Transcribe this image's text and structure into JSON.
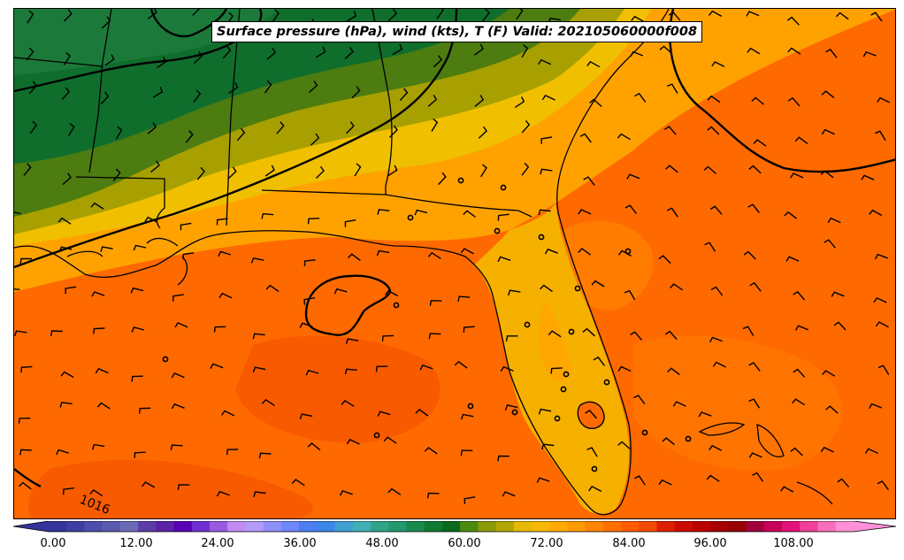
{
  "map": {
    "title": "Surface pressure (hPa), wind (kts), T (F) Valid: 202105060000f008",
    "isobar_label": "1016"
  },
  "colorbar": {
    "tick_labels": [
      "0.00",
      "12.00",
      "24.00",
      "36.00",
      "48.00",
      "60.00",
      "72.00",
      "84.00",
      "96.00",
      "108.00"
    ],
    "colors": [
      "#34349a",
      "#3f3fa3",
      "#4d4dab",
      "#5a5ab0",
      "#6a6ab6",
      "#5b3da7",
      "#5a22a5",
      "#5a00b4",
      "#6f2fd0",
      "#9a5ae0",
      "#c08cf2",
      "#b49bf8",
      "#8f8ff8",
      "#6e87fb",
      "#4d7ef4",
      "#3b87e8",
      "#3f9fd0",
      "#3fb0b3",
      "#2fa488",
      "#22996f",
      "#198a4e",
      "#0f7a32",
      "#0b6a1c",
      "#4d8a10",
      "#8a9a08",
      "#b3a500",
      "#e6b800",
      "#f6b800",
      "#ffaa00",
      "#ff9900",
      "#ff8400",
      "#ff6f00",
      "#ff5b00",
      "#f24a00",
      "#dd2000",
      "#cc0b00",
      "#bb0000",
      "#a60000",
      "#960000",
      "#a0003a",
      "#c8005a",
      "#e3127a",
      "#f0409a",
      "#f66fb8",
      "#ff90d8"
    ]
  }
}
